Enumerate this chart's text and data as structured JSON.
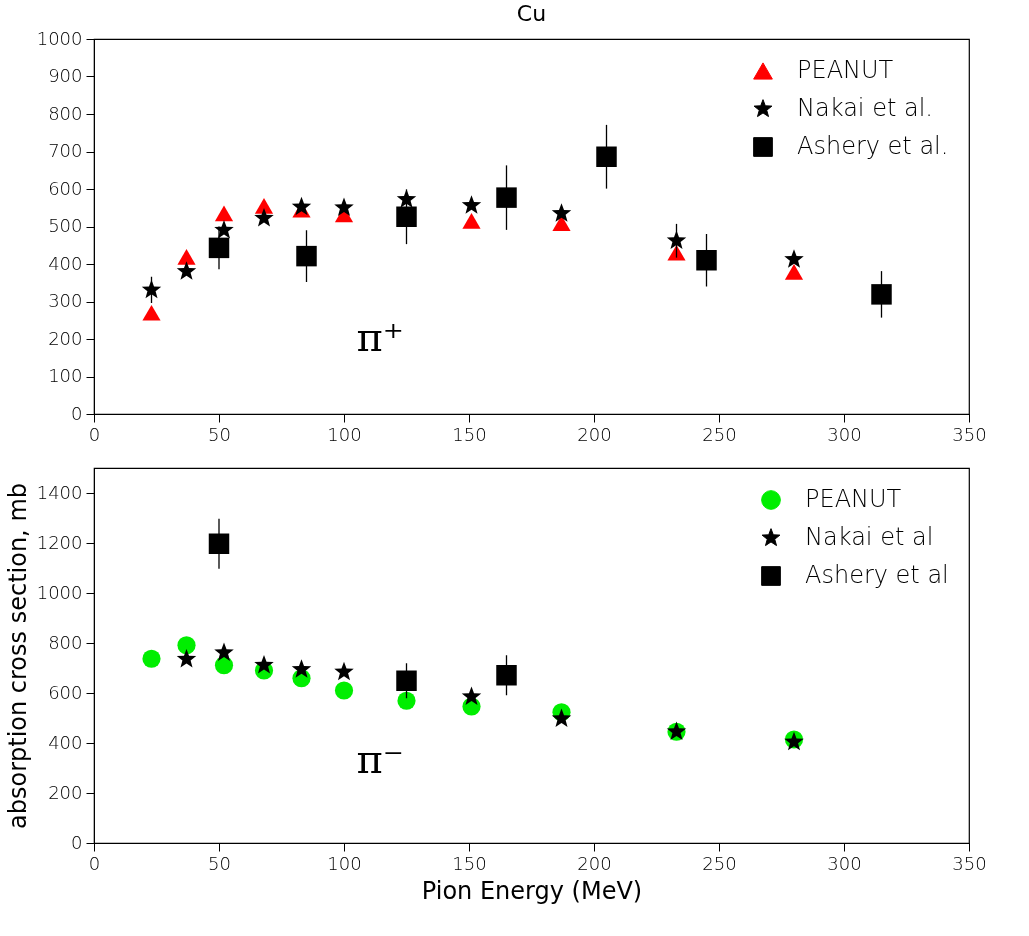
{
  "chart_data": [
    {
      "type": "scatter",
      "title": "Cu",
      "xlim": [
        0,
        350
      ],
      "xticks": [
        0,
        50,
        100,
        150,
        200,
        250,
        300,
        350
      ],
      "ylim": [
        0,
        1000
      ],
      "yticks": [
        0,
        100,
        200,
        300,
        400,
        500,
        600,
        700,
        800,
        900,
        1000
      ],
      "grid": false,
      "legend": "top right",
      "annotations": [
        "π⁺"
      ],
      "series": [
        {
          "name": "PEANUT",
          "color": "#ff0000",
          "marker": "triangle",
          "x": [
            23,
            37,
            52,
            68,
            83,
            100,
            151,
            187,
            233,
            280
          ],
          "values": [
            270,
            419,
            535,
            555,
            545,
            532,
            515,
            509,
            430,
            379
          ]
        },
        {
          "name": "Nakai et al.",
          "color": "#000000",
          "marker": "star",
          "x": [
            23,
            37,
            52,
            68,
            83,
            100,
            125,
            151,
            187,
            233,
            280
          ],
          "values": [
            331,
            380,
            490,
            522,
            552,
            550,
            572,
            556,
            535,
            462,
            412
          ],
          "errors": [
            35,
            null,
            null,
            null,
            null,
            null,
            null,
            null,
            null,
            45,
            null
          ]
        },
        {
          "name": "Ashery et al.",
          "color": "#000000",
          "marker": "square",
          "x": [
            50,
            85,
            125,
            165,
            205,
            245,
            315
          ],
          "values": [
            443,
            421,
            526,
            577,
            686,
            410,
            319
          ],
          "errors": [
            57,
            69,
            73,
            86,
            85,
            70,
            62
          ]
        }
      ]
    },
    {
      "type": "scatter",
      "xlabel": "Pion Energy (MeV)",
      "ylabel": "absorption cross section, mb",
      "xlim": [
        0,
        350
      ],
      "xticks": [
        0,
        50,
        100,
        150,
        200,
        250,
        300,
        350
      ],
      "ylim": [
        0,
        1500
      ],
      "yticks": [
        0,
        200,
        400,
        600,
        800,
        1000,
        1200,
        1400
      ],
      "grid": false,
      "legend": "top right",
      "annotations": [
        "π⁻"
      ],
      "series": [
        {
          "name": "PEANUT",
          "color": "#00ee00",
          "marker": "circle",
          "x": [
            23,
            37,
            52,
            68,
            83,
            100,
            125,
            151,
            187,
            233,
            280
          ],
          "values": [
            737,
            791,
            711,
            690,
            659,
            610,
            569,
            546,
            523,
            445,
            414
          ]
        },
        {
          "name": "Nakai et al",
          "color": "#000000",
          "marker": "star",
          "x": [
            37,
            52,
            68,
            83,
            100,
            151,
            187,
            233,
            280
          ],
          "values": [
            735,
            761,
            711,
            694,
            684,
            585,
            497,
            445,
            404
          ]
        },
        {
          "name": "Ashery et al",
          "color": "#000000",
          "marker": "square",
          "x": [
            50,
            125,
            165
          ],
          "values": [
            1197,
            649,
            671
          ],
          "errors": [
            100,
            70,
            80
          ]
        }
      ]
    }
  ]
}
